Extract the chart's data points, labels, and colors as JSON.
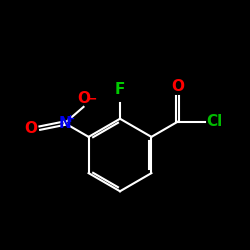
{
  "background_color": "#000000",
  "bond_color": "#ffffff",
  "atom_colors": {
    "O_minus": "#ff0000",
    "N_plus": "#0000ee",
    "O": "#ff0000",
    "F": "#00cc00",
    "O_carbonyl": "#ff0000",
    "Cl": "#00bb00"
  },
  "figsize": [
    2.5,
    2.5
  ],
  "dpi": 100
}
